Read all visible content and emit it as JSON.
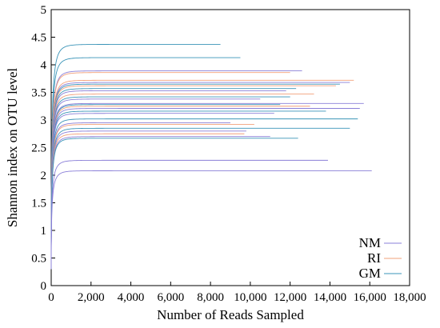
{
  "chart_data": {
    "type": "line",
    "title": "",
    "xlabel": "Number of Reads Sampled",
    "ylabel": "Shannon index on OTU level",
    "xlim": [
      0,
      18000
    ],
    "ylim": [
      0,
      5
    ],
    "x_ticks": [
      "0",
      "2,000",
      "4,000",
      "6,000",
      "8,000",
      "10,000",
      "12,000",
      "14,000",
      "16,000",
      "18,000"
    ],
    "x_tick_values": [
      0,
      2000,
      4000,
      6000,
      8000,
      10000,
      12000,
      14000,
      16000,
      18000
    ],
    "y_ticks": [
      "0",
      "0.5",
      "1",
      "1.5",
      "2",
      "2.5",
      "3",
      "3.5",
      "4",
      "4.5",
      "5"
    ],
    "y_tick_values": [
      0,
      0.5,
      1,
      1.5,
      2,
      2.5,
      3,
      3.5,
      4,
      4.5,
      5
    ],
    "grid": false,
    "legend_position": "bottom-right",
    "legend": [
      {
        "label": "NM",
        "color": "#8a7fd8"
      },
      {
        "label": "RI",
        "color": "#f2a07a"
      },
      {
        "label": "GM",
        "color": "#3a94b8"
      }
    ],
    "series": [
      {
        "group": "GM",
        "color": "#3a94b8",
        "plateau": 4.37,
        "max_reads": 8500
      },
      {
        "group": "GM",
        "color": "#3a94b8",
        "plateau": 4.13,
        "max_reads": 9500
      },
      {
        "group": "NM",
        "color": "#8a7fd8",
        "plateau": 3.89,
        "max_reads": 12600
      },
      {
        "group": "RI",
        "color": "#f2a07a",
        "plateau": 3.86,
        "max_reads": 12000
      },
      {
        "group": "RI",
        "color": "#f2a07a",
        "plateau": 3.72,
        "max_reads": 15200
      },
      {
        "group": "NM",
        "color": "#8a7fd8",
        "plateau": 3.68,
        "max_reads": 15000
      },
      {
        "group": "GM",
        "color": "#3a94b8",
        "plateau": 3.65,
        "max_reads": 14500
      },
      {
        "group": "RI",
        "color": "#f2a07a",
        "plateau": 3.62,
        "max_reads": 14300
      },
      {
        "group": "GM",
        "color": "#3a94b8",
        "plateau": 3.57,
        "max_reads": 12300
      },
      {
        "group": "NM",
        "color": "#8a7fd8",
        "plateau": 3.53,
        "max_reads": 11800
      },
      {
        "group": "RI",
        "color": "#f2a07a",
        "plateau": 3.47,
        "max_reads": 13200
      },
      {
        "group": "GM",
        "color": "#3a94b8",
        "plateau": 3.42,
        "max_reads": 12000
      },
      {
        "group": "NM",
        "color": "#8a7fd8",
        "plateau": 3.38,
        "max_reads": 10500
      },
      {
        "group": "NM",
        "color": "#8a7fd8",
        "plateau": 3.3,
        "max_reads": 15700
      },
      {
        "group": "GM",
        "color": "#3a94b8",
        "plateau": 3.28,
        "max_reads": 11500
      },
      {
        "group": "RI",
        "color": "#f2a07a",
        "plateau": 3.25,
        "max_reads": 13000
      },
      {
        "group": "NM",
        "color": "#8a7fd8",
        "plateau": 3.21,
        "max_reads": 15500
      },
      {
        "group": "GM",
        "color": "#3a94b8",
        "plateau": 3.16,
        "max_reads": 13800
      },
      {
        "group": "NM",
        "color": "#8a7fd8",
        "plateau": 3.12,
        "max_reads": 11200
      },
      {
        "group": "GM",
        "color": "#3a94b8",
        "plateau": 3.02,
        "max_reads": 15400
      },
      {
        "group": "NM",
        "color": "#8a7fd8",
        "plateau": 2.95,
        "max_reads": 9000
      },
      {
        "group": "RI",
        "color": "#f2a07a",
        "plateau": 2.92,
        "max_reads": 10200
      },
      {
        "group": "GM",
        "color": "#3a94b8",
        "plateau": 2.85,
        "max_reads": 15000
      },
      {
        "group": "NM",
        "color": "#8a7fd8",
        "plateau": 2.8,
        "max_reads": 9800
      },
      {
        "group": "RI",
        "color": "#f2a07a",
        "plateau": 2.75,
        "max_reads": 9700
      },
      {
        "group": "NM",
        "color": "#8a7fd8",
        "plateau": 2.7,
        "max_reads": 11000
      },
      {
        "group": "GM",
        "color": "#3a94b8",
        "plateau": 2.67,
        "max_reads": 12400
      },
      {
        "group": "NM",
        "color": "#8a7fd8",
        "plateau": 2.27,
        "max_reads": 13900
      },
      {
        "group": "NM",
        "color": "#8a7fd8",
        "plateau": 2.08,
        "max_reads": 16100
      }
    ]
  }
}
